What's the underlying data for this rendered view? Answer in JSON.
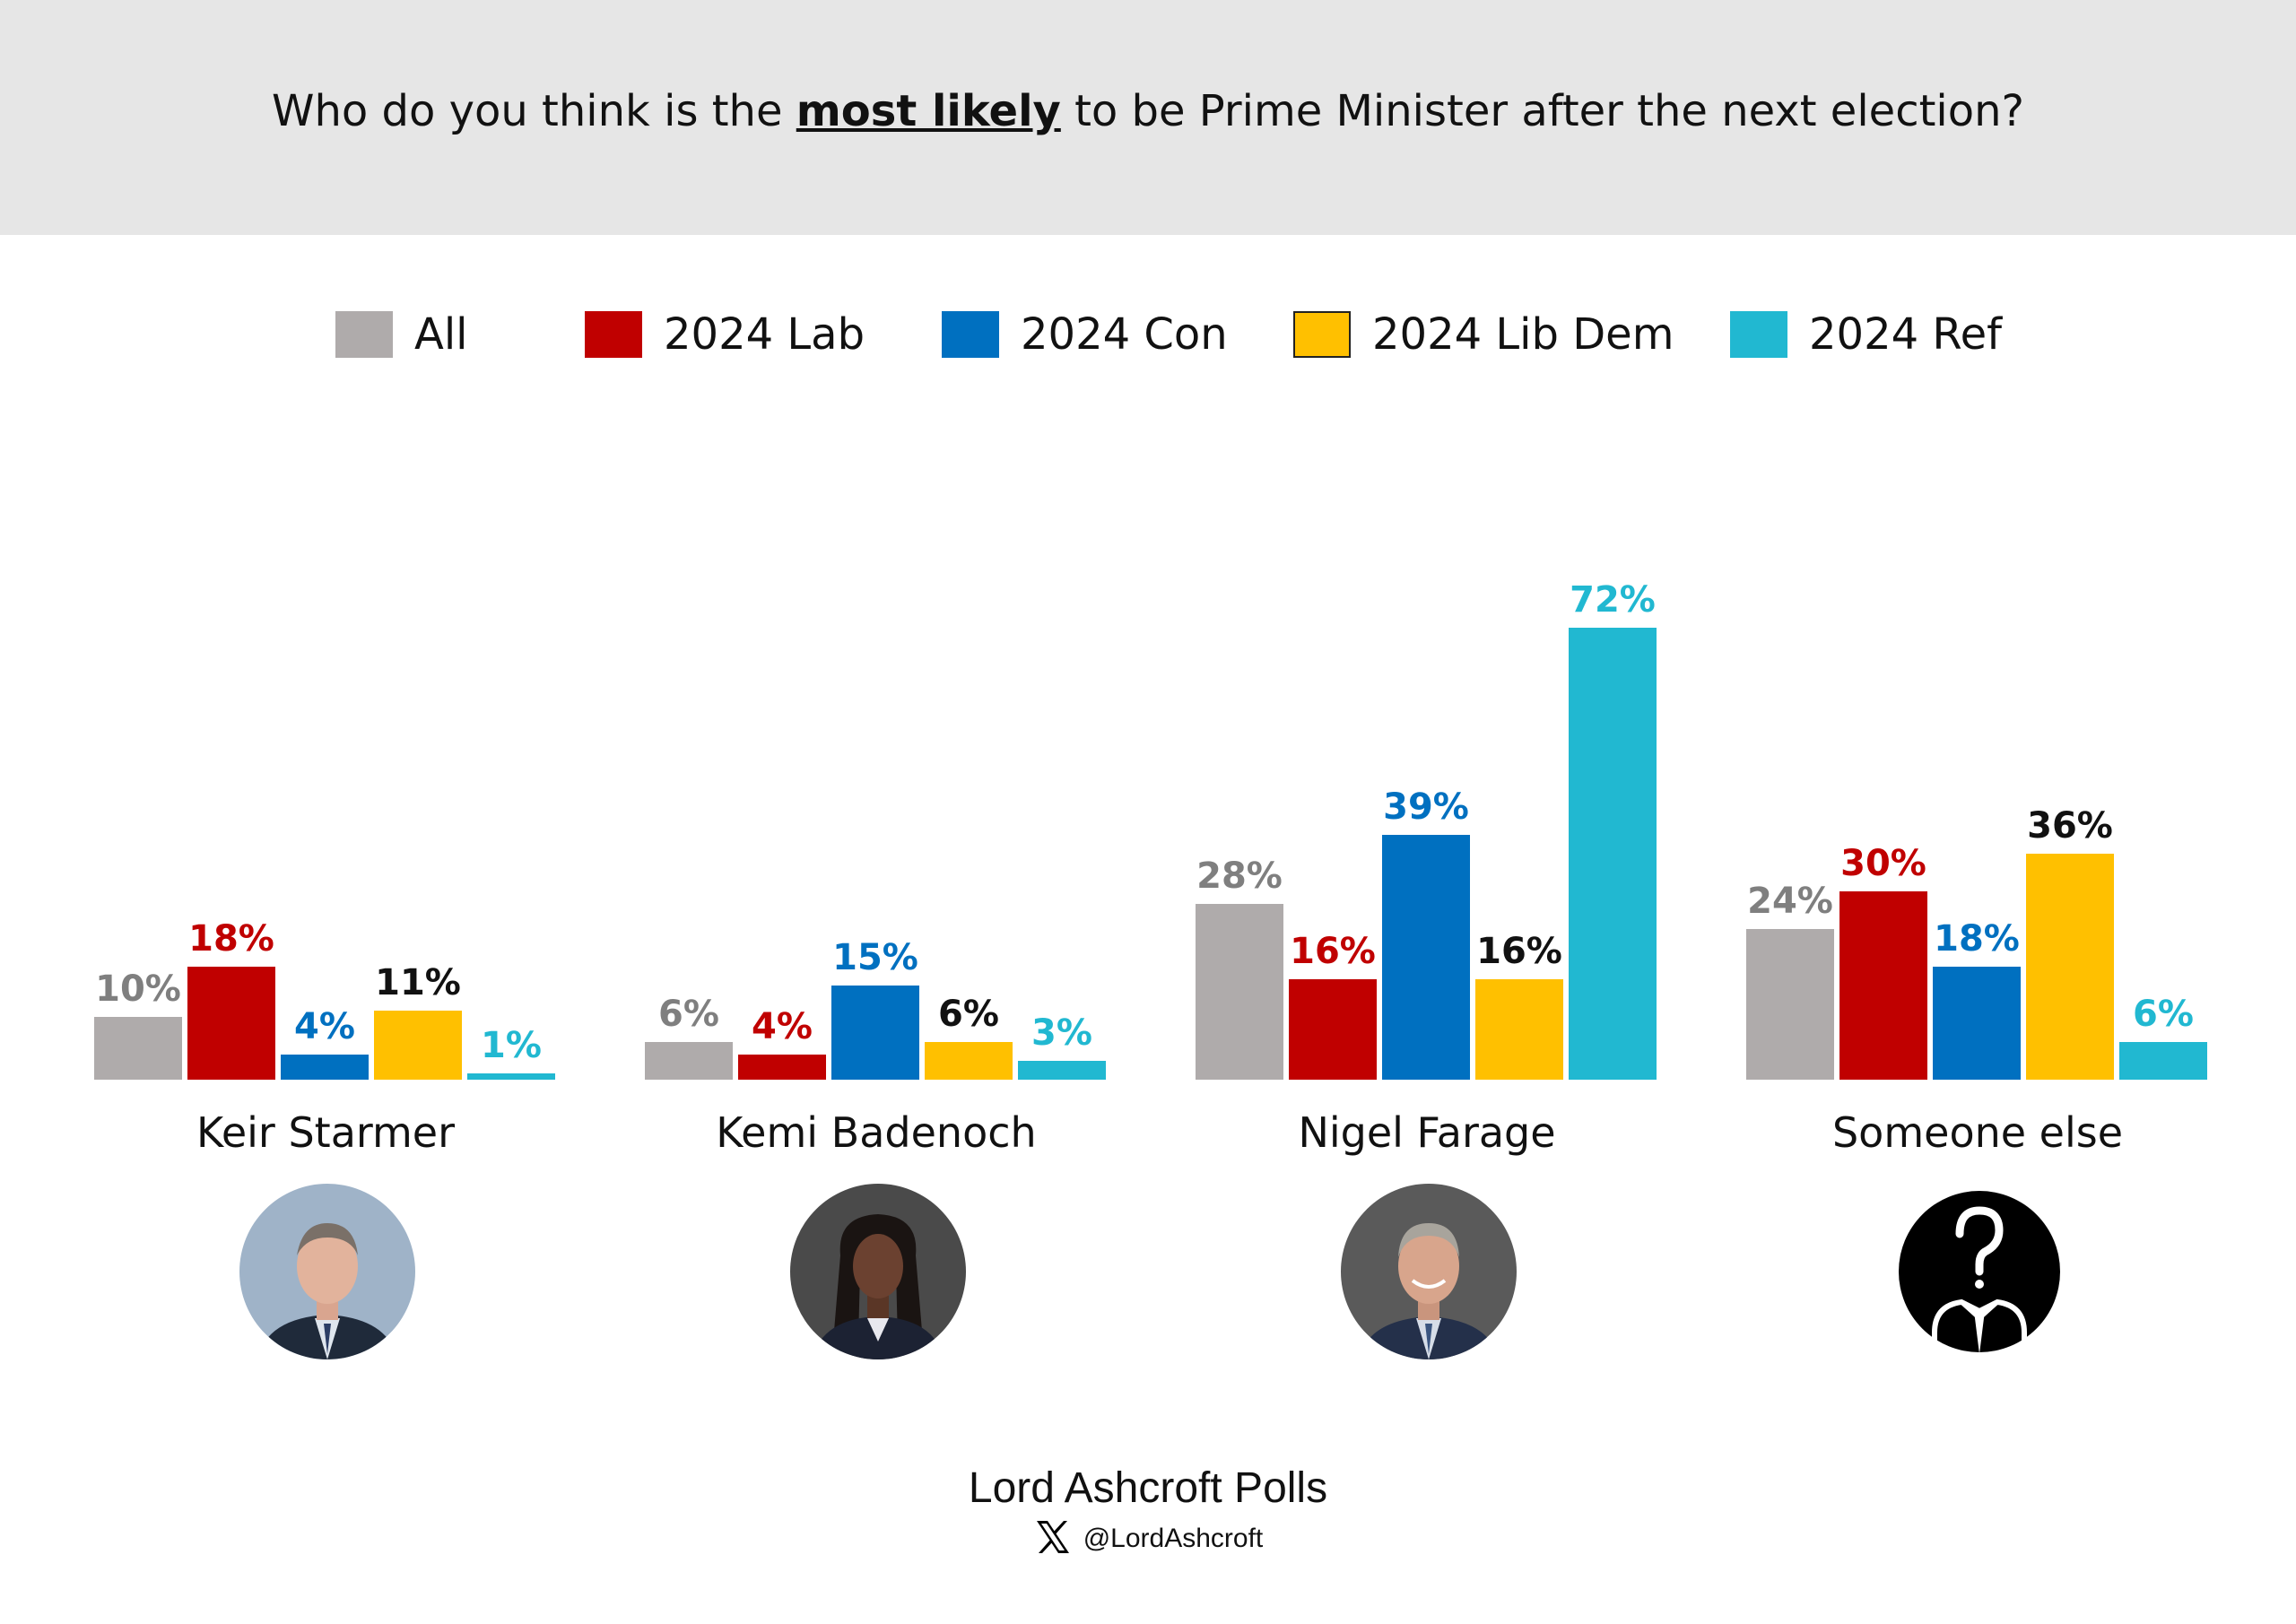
{
  "header": {
    "question_before": "Who do you think is the ",
    "question_emphasis": "most likely",
    "question_after": " to be Prime Minister after the next election?"
  },
  "colors": {
    "header_bg": "#e6e6e6",
    "All": "#afabab",
    "2024 Lab": "#c00000",
    "2024 Con": "#0070c0",
    "2024 Lib Dem": "#ffc000",
    "2024 Ref": "#21b8d1",
    "All_label": "#7f7f7f",
    "2024 Lab_label": "#c00000",
    "2024 Con_label": "#0070c0",
    "2024 Lib Dem_label": "#111111",
    "2024 Ref_label": "#21b8d1"
  },
  "legend": [
    "All",
    "2024 Lab",
    "2024 Con",
    "2024 Lib Dem",
    "2024 Ref"
  ],
  "chart_data": {
    "type": "bar",
    "title": "Who do you think is the most likely to be Prime Minister after the next election?",
    "categories": [
      "Keir Starmer",
      "Kemi Badenoch",
      "Nigel Farage",
      "Someone else"
    ],
    "series": [
      {
        "name": "All",
        "values": [
          10,
          6,
          28,
          24
        ]
      },
      {
        "name": "2024 Lab",
        "values": [
          18,
          4,
          16,
          30
        ]
      },
      {
        "name": "2024 Con",
        "values": [
          4,
          15,
          39,
          18
        ]
      },
      {
        "name": "2024 Lib Dem",
        "values": [
          11,
          6,
          16,
          36
        ]
      },
      {
        "name": "2024 Ref",
        "values": [
          1,
          3,
          72,
          6
        ]
      }
    ],
    "value_suffix": "%",
    "ylim": [
      0,
      72
    ],
    "grid": false,
    "legend_position": "top"
  },
  "candidates": [
    {
      "name": "Keir Starmer",
      "icon": "keir-starmer-portrait"
    },
    {
      "name": "Kemi Badenoch",
      "icon": "kemi-badenoch-portrait"
    },
    {
      "name": "Nigel Farage",
      "icon": "nigel-farage-portrait"
    },
    {
      "name": "Someone else",
      "icon": "question-person-icon"
    }
  ],
  "footer": {
    "brand": "Lord Ashcroft Polls",
    "handle": "@LordAshcroft",
    "handle_icon": "x-logo-icon"
  }
}
